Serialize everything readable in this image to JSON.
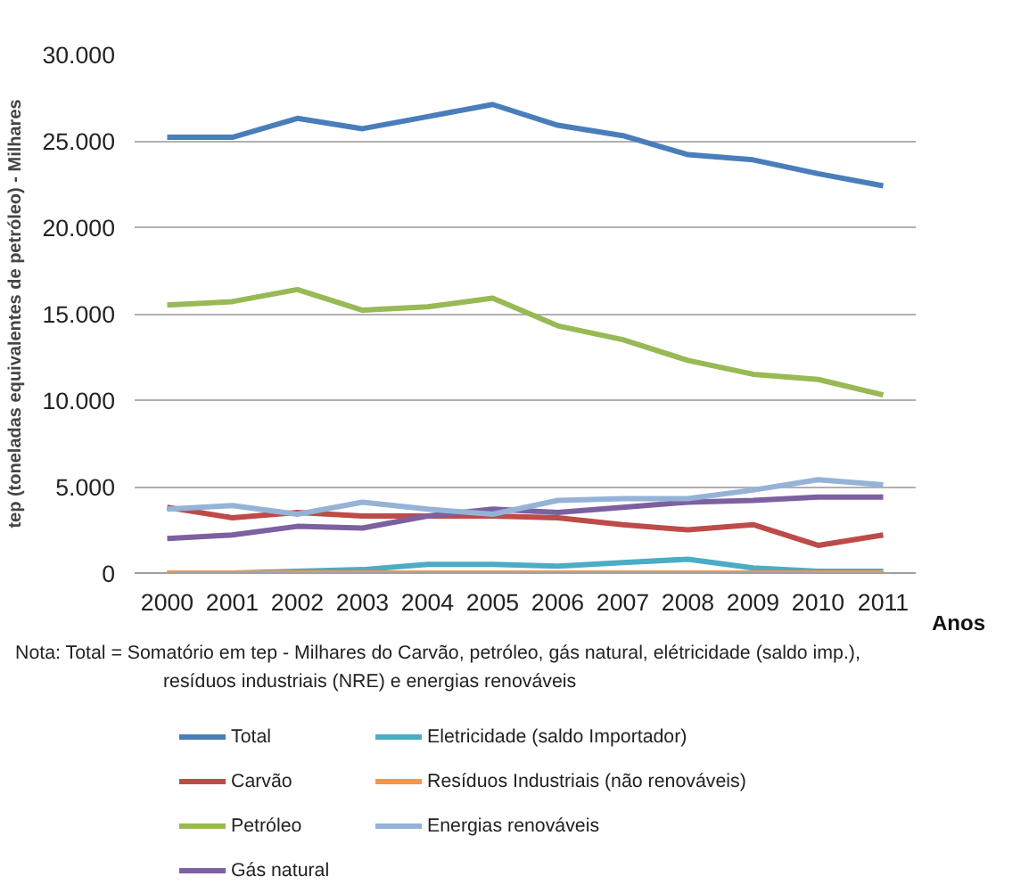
{
  "chart_data": {
    "type": "line",
    "xlabel": "Anos",
    "ylabel": "tep (toneladas equivalentes de petróleo) - Milhares",
    "categories": [
      "2000",
      "2001",
      "2002",
      "2003",
      "2004",
      "2005",
      "2006",
      "2007",
      "2008",
      "2009",
      "2010",
      "2011"
    ],
    "series": [
      {
        "name": "Total",
        "color": "#4a7ebb",
        "values": [
          25200,
          25200,
          26300,
          25700,
          26400,
          27100,
          25900,
          25300,
          24200,
          23900,
          23100,
          22400
        ]
      },
      {
        "name": "Carvão",
        "color": "#be4b48",
        "values": [
          3800,
          3200,
          3500,
          3300,
          3300,
          3300,
          3200,
          2800,
          2500,
          2800,
          1600,
          2200
        ]
      },
      {
        "name": "Petróleo",
        "color": "#98b954",
        "values": [
          15500,
          15700,
          16400,
          15200,
          15400,
          15900,
          14300,
          13500,
          12300,
          11500,
          11200,
          10300
        ]
      },
      {
        "name": "Gás natural",
        "color": "#7d60a0",
        "values": [
          2000,
          2200,
          2700,
          2600,
          3300,
          3700,
          3500,
          3800,
          4100,
          4200,
          4400,
          4400
        ]
      },
      {
        "name": "Eletricidade (saldo Importador)",
        "color": "#4bacc6",
        "values": [
          0,
          0,
          100,
          200,
          500,
          500,
          400,
          600,
          800,
          300,
          100,
          100
        ]
      },
      {
        "name": "Resíduos Industriais (não renováveis)",
        "color": "#f79646",
        "values": [
          0,
          0,
          0,
          0,
          0,
          0,
          0,
          0,
          0,
          0,
          0,
          0
        ]
      },
      {
        "name": "Energias renováveis",
        "color": "#95b3d7",
        "values": [
          3700,
          3900,
          3400,
          4100,
          3700,
          3400,
          4200,
          4300,
          4300,
          4800,
          5400,
          5100
        ]
      }
    ],
    "ylim": [
      0,
      30000
    ],
    "yticks": [
      {
        "value": 0,
        "label": "0"
      },
      {
        "value": 5000,
        "label": "5.000"
      },
      {
        "value": 10000,
        "label": "10.000"
      },
      {
        "value": 15000,
        "label": "15.000"
      },
      {
        "value": 20000,
        "label": "20.000"
      },
      {
        "value": 25000,
        "label": "25.000"
      },
      {
        "value": 30000,
        "label": "30.000"
      }
    ],
    "grid": "y",
    "legend": "bottom",
    "marker": "none",
    "line_style": "solid",
    "annotations": [
      "Nota: Total = Somatório em tep - Milhares do Carvão, petróleo, gás natural, elétricidade (saldo imp.),",
      "resíduos industriais (NRE) e energias renováveis"
    ]
  }
}
